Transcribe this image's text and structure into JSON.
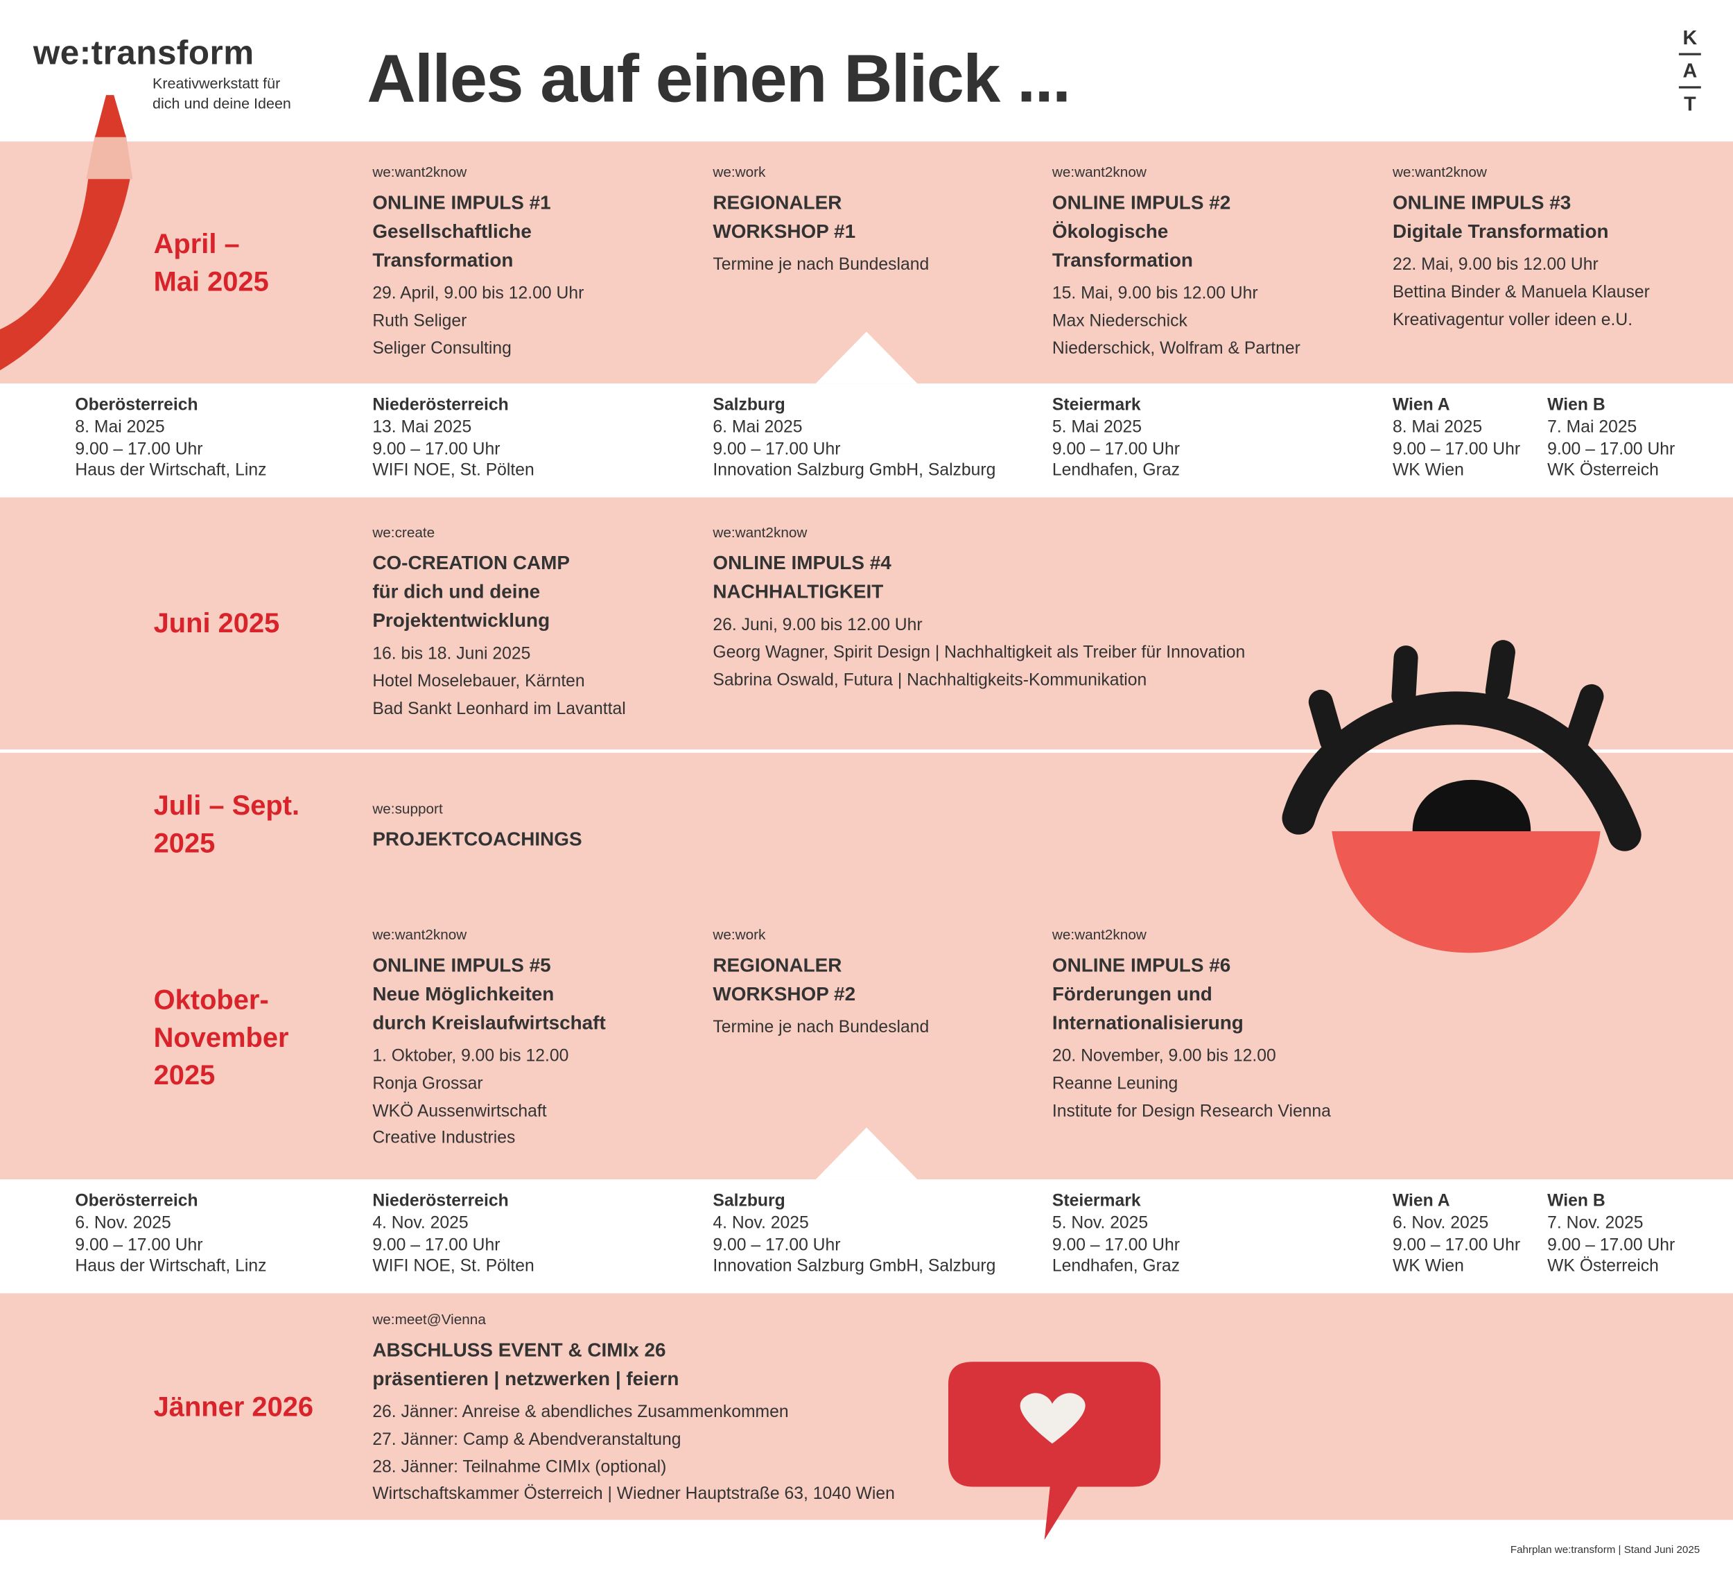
{
  "header": {
    "logo": "we:transform",
    "tagline": [
      "Kreativwerkstatt für",
      "dich und deine Ideen"
    ],
    "title": "Alles auf einen Blick ...",
    "badge": [
      "K",
      "A",
      "T"
    ]
  },
  "sections": [
    {
      "period": [
        "April –",
        "Mai 2025"
      ],
      "events": [
        {
          "tag": "we:want2know",
          "title": [
            "ONLINE IMPULS #1",
            "Gesellschaftliche",
            "Transformation"
          ],
          "details": [
            "29. April, 9.00 bis 12.00 Uhr",
            "Ruth Seliger",
            "Seliger Consulting"
          ]
        },
        {
          "tag": "we:work",
          "title": [
            "REGIONALER",
            "WORKSHOP #1"
          ],
          "details": [
            "Termine je nach Bundesland"
          ]
        },
        {
          "tag": "we:want2know",
          "title": [
            "ONLINE IMPULS #2",
            "Ökologische",
            "Transformation"
          ],
          "details": [
            "15. Mai, 9.00 bis 12.00 Uhr",
            "Max Niederschick",
            "Niederschick, Wolfram & Partner"
          ]
        },
        {
          "tag": "we:want2know",
          "title": [
            "ONLINE IMPULS #3",
            "Digitale Transformation"
          ],
          "details": [
            "22. Mai, 9.00 bis 12.00 Uhr",
            "Bettina Binder & Manuela Klauser",
            "Kreativagentur voller ideen e.U."
          ]
        }
      ],
      "venues": [
        {
          "region": "Oberösterreich",
          "date": "8. Mai 2025",
          "time": "9.00 – 17.00 Uhr",
          "place": "Haus der Wirtschaft, Linz"
        },
        {
          "region": "Niederösterreich",
          "date": "13. Mai 2025",
          "time": "9.00 – 17.00 Uhr",
          "place": "WIFI NOE, St. Pölten"
        },
        {
          "region": "Salzburg",
          "date": "6. Mai 2025",
          "time": "9.00 – 17.00 Uhr",
          "place": "Innovation Salzburg GmbH, Salzburg"
        },
        {
          "region": "Steiermark",
          "date": "5. Mai 2025",
          "time": "9.00 – 17.00 Uhr",
          "place": "Lendhafen, Graz"
        },
        {
          "region": "Wien A",
          "date": "8. Mai 2025",
          "time": "9.00 – 17.00 Uhr",
          "place": "WK Wien"
        },
        {
          "region": "Wien B",
          "date": "7. Mai 2025",
          "time": "9.00 – 17.00 Uhr",
          "place": "WK Österreich"
        }
      ]
    },
    {
      "period": [
        "Juni 2025"
      ],
      "events": [
        {
          "tag": "we:create",
          "title": [
            "CO-CREATION CAMP",
            "für dich und deine",
            "Projektentwicklung"
          ],
          "details": [
            "16. bis 18. Juni 2025",
            "Hotel Moselebauer, Kärnten",
            "Bad Sankt Leonhard im Lavanttal"
          ]
        },
        {
          "tag": "we:want2know",
          "title": [
            "ONLINE IMPULS #4",
            "NACHHALTIGKEIT"
          ],
          "details": [
            "26. Juni, 9.00 bis 12.00 Uhr",
            "Georg Wagner, Spirit Design | Nachhaltigkeit als Treiber für Innovation",
            "Sabrina Oswald, Futura | Nachhaltigkeits-Kommunikation"
          ]
        }
      ]
    },
    {
      "period": [
        "Juli – Sept.",
        "2025"
      ],
      "events": [
        {
          "tag": "we:support",
          "title": [
            "PROJEKTCOACHINGS"
          ]
        }
      ]
    },
    {
      "period": [
        "Oktober-",
        "November",
        "2025"
      ],
      "events": [
        {
          "tag": "we:want2know",
          "title": [
            "ONLINE IMPULS #5",
            "Neue Möglichkeiten",
            "durch Kreislaufwirtschaft"
          ],
          "details": [
            "1. Oktober, 9.00 bis 12.00",
            "Ronja Grossar",
            "WKÖ Aussenwirtschaft",
            "Creative Industries"
          ]
        },
        {
          "tag": "we:work",
          "title": [
            "REGIONALER",
            "WORKSHOP #2"
          ],
          "details": [
            "Termine je nach Bundesland"
          ]
        },
        {
          "tag": "we:want2know",
          "title": [
            "ONLINE IMPULS #6",
            "Förderungen und",
            "Internationalisierung"
          ],
          "details": [
            "20. November, 9.00 bis 12.00",
            "Reanne Leuning",
            "Institute for Design Research Vienna"
          ]
        }
      ],
      "venues": [
        {
          "region": "Oberösterreich",
          "date": "6. Nov. 2025",
          "time": "9.00 – 17.00 Uhr",
          "place": "Haus der Wirtschaft, Linz"
        },
        {
          "region": "Niederösterreich",
          "date": "4. Nov. 2025",
          "time": "9.00 – 17.00 Uhr",
          "place": "WIFI NOE, St. Pölten"
        },
        {
          "region": "Salzburg",
          "date": "4. Nov. 2025",
          "time": "9.00 – 17.00 Uhr",
          "place": "Innovation Salzburg GmbH, Salzburg"
        },
        {
          "region": "Steiermark",
          "date": "5. Nov. 2025",
          "time": "9.00 – 17.00 Uhr",
          "place": "Lendhafen, Graz"
        },
        {
          "region": "Wien A",
          "date": "6. Nov. 2025",
          "time": "9.00 – 17.00 Uhr",
          "place": "WK Wien"
        },
        {
          "region": "Wien B",
          "date": "7. Nov. 2025",
          "time": "9.00 – 17.00 Uhr",
          "place": "WK Österreich"
        }
      ]
    },
    {
      "period": [
        "Jänner 2026"
      ],
      "events": [
        {
          "tag": "we:meet@Vienna",
          "title": [
            "ABSCHLUSS EVENT & CIMIx 26",
            "präsentieren | netzwerken | feiern"
          ],
          "details": [
            "26. Jänner: Anreise & abendliches Zusammenkommen",
            "27. Jänner: Camp & Abendveranstaltung",
            "28. Jänner: Teilnahme CIMIx (optional)",
            "Wirtschaftskammer Österreich | Wiedner Hauptstraße 63, 1040 Wien"
          ]
        }
      ]
    }
  ],
  "footer": "Fahrplan we:transform | Stand Juni 2025"
}
